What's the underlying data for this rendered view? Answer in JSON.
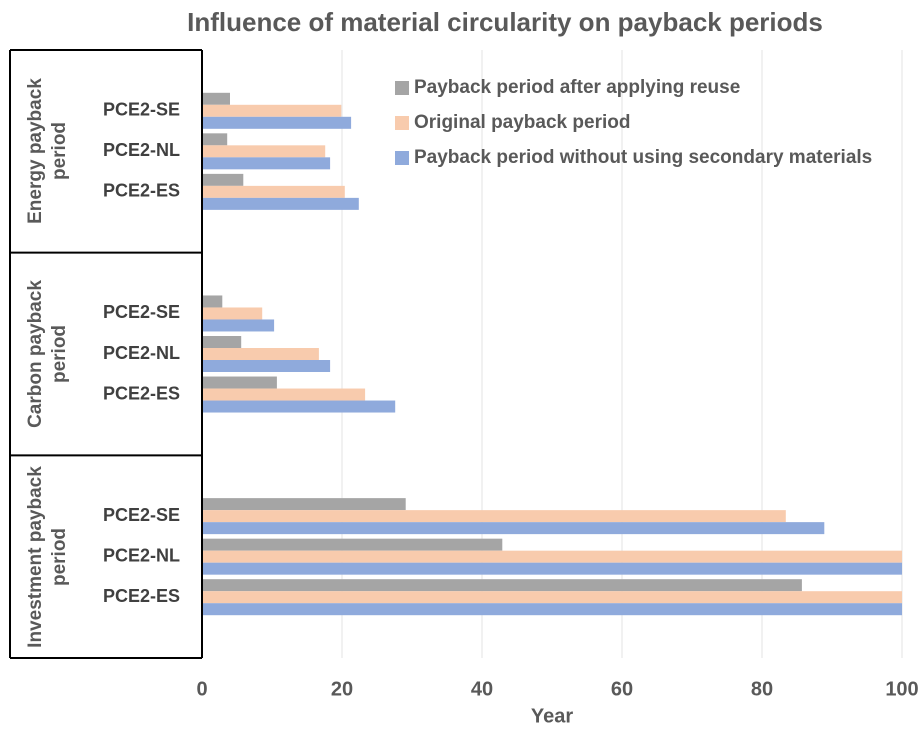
{
  "chart_data": {
    "type": "bar",
    "orientation": "horizontal",
    "title": "Influence of material circularity on payback periods",
    "xlabel": "Year",
    "groups": [
      {
        "name": "Energy payback period",
        "categories": [
          "PCE2-SE",
          "PCE2-NL",
          "PCE2-ES"
        ]
      },
      {
        "name": "Carbon payback period",
        "categories": [
          "PCE2-SE",
          "PCE2-NL",
          "PCE2-ES"
        ]
      },
      {
        "name": "Investment payback period",
        "categories": [
          "PCE2-SE",
          "PCE2-NL",
          "PCE2-ES"
        ]
      }
    ],
    "series": [
      {
        "name": "Payback period after applying reuse",
        "color": "#a5a5a5",
        "values": [
          4,
          3.6,
          5.9,
          2.9,
          5.6,
          10.7,
          29.1,
          42.9,
          85.7
        ]
      },
      {
        "name": "Original payback period",
        "color": "#f8cbad",
        "values": [
          19.9,
          17.6,
          20.4,
          8.6,
          16.7,
          23.3,
          83.4,
          100,
          100
        ]
      },
      {
        "name": "Payback period without using secondary materials",
        "color": "#8faadc",
        "values": [
          21.3,
          18.3,
          22.4,
          10.3,
          18.3,
          27.6,
          88.9,
          100,
          100
        ]
      }
    ],
    "xlim": [
      0,
      100
    ],
    "xticks": [
      0,
      20,
      40,
      60,
      80,
      100
    ],
    "grid": true,
    "legend": "upper right"
  }
}
